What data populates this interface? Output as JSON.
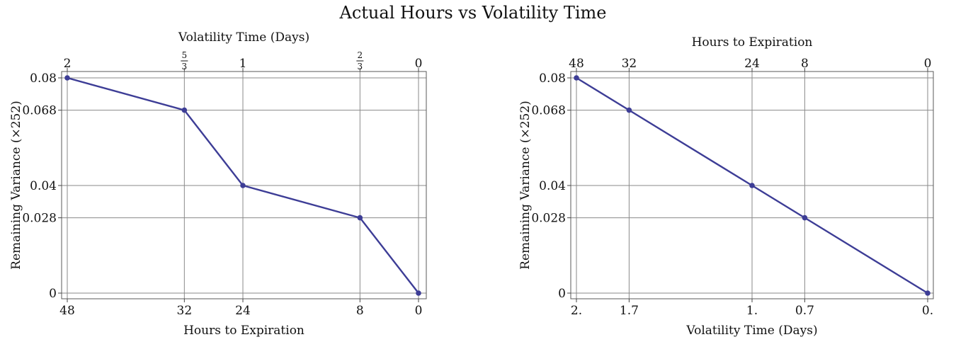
{
  "title": "Actual Hours vs Volatility Time",
  "colors": {
    "series": "#3d3d96",
    "grid": "#8a8a8a"
  },
  "chart_data": [
    {
      "type": "line",
      "xlabel": "Hours to Expiration",
      "x2label": "Volatility Time (Days)",
      "ylabel": "Remaining Variance (×252)",
      "xlim": [
        48,
        0
      ],
      "ylim": [
        0,
        0.08
      ],
      "grid": true,
      "x_bottom_ticks": [
        {
          "value": 48,
          "label": "48"
        },
        {
          "value": 32,
          "label": "32"
        },
        {
          "value": 24,
          "label": "24"
        },
        {
          "value": 8,
          "label": "8"
        },
        {
          "value": 0,
          "label": "0"
        }
      ],
      "x_top_ticks": [
        {
          "value": 48,
          "label": "2"
        },
        {
          "value": 32,
          "num": "5",
          "den": "3"
        },
        {
          "value": 24,
          "label": "1"
        },
        {
          "value": 8,
          "num": "2",
          "den": "3"
        },
        {
          "value": 0,
          "label": "0"
        }
      ],
      "y_ticks": [
        {
          "value": 0.08,
          "label": "0.08"
        },
        {
          "value": 0.068,
          "label": "0.068"
        },
        {
          "value": 0.04,
          "label": "0.04"
        },
        {
          "value": 0.028,
          "label": "0.028"
        },
        {
          "value": 0,
          "label": "0"
        }
      ],
      "series": [
        {
          "x": [
            48,
            32,
            24,
            8,
            0
          ],
          "y": [
            0.08,
            0.068,
            0.04,
            0.028,
            0
          ]
        }
      ]
    },
    {
      "type": "line",
      "xlabel": "Volatility Time (Days)",
      "x2label": "Hours to Expiration",
      "ylabel": "Remaining Variance (×252)",
      "xlim": [
        2,
        0
      ],
      "ylim": [
        0,
        0.08
      ],
      "grid": true,
      "x_bottom_ticks": [
        {
          "value": 2,
          "label": "2."
        },
        {
          "value": 1.7,
          "label": "1.7"
        },
        {
          "value": 1,
          "label": "1."
        },
        {
          "value": 0.7,
          "label": "0.7"
        },
        {
          "value": 0,
          "label": "0."
        }
      ],
      "x_top_ticks": [
        {
          "value": 2,
          "label": "48"
        },
        {
          "value": 1.7,
          "label": "32"
        },
        {
          "value": 1,
          "label": "24"
        },
        {
          "value": 0.7,
          "label": "8"
        },
        {
          "value": 0,
          "label": "0"
        }
      ],
      "y_ticks": [
        {
          "value": 0.08,
          "label": "0.08"
        },
        {
          "value": 0.068,
          "label": "0.068"
        },
        {
          "value": 0.04,
          "label": "0.04"
        },
        {
          "value": 0.028,
          "label": "0.028"
        },
        {
          "value": 0,
          "label": "0"
        }
      ],
      "series": [
        {
          "x": [
            2,
            1.7,
            1,
            0.7,
            0
          ],
          "y": [
            0.08,
            0.068,
            0.04,
            0.028,
            0
          ]
        }
      ]
    }
  ]
}
